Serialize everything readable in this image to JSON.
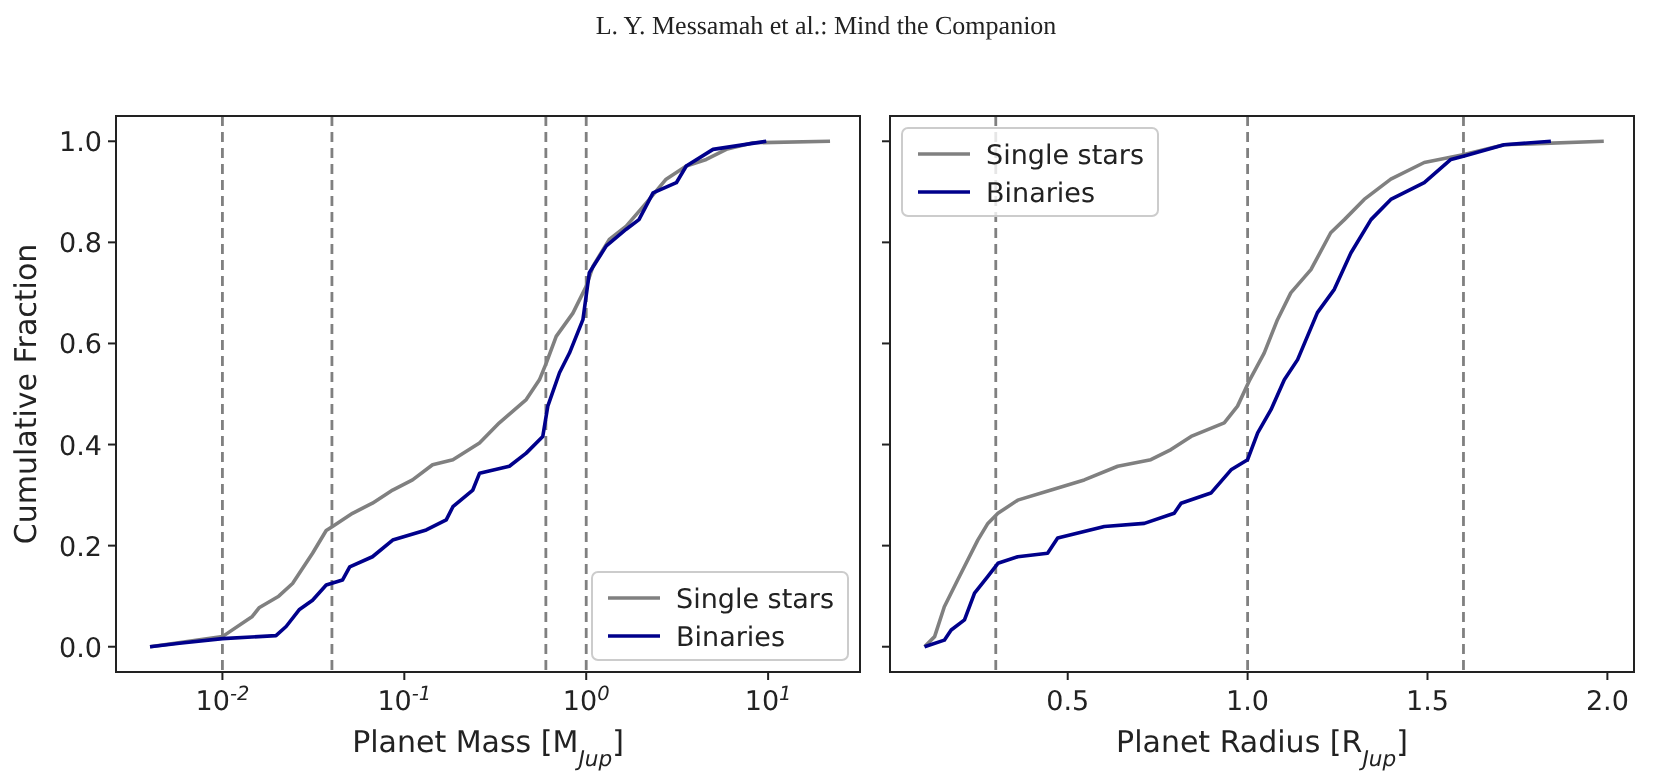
{
  "chart_data": [
    {
      "type": "line",
      "title": null,
      "annotations": [
        "L. Y. Messamah et al.: Mind the Companion"
      ],
      "xlabel": "Planet Mass [M$_{Jup}$]",
      "ylabel": "Cumulative Fraction",
      "log": "x",
      "xlim": [
        0.0026,
        32
      ],
      "xticks": [
        {
          "value": 0.01,
          "label": "10$^{-2}$"
        },
        {
          "value": 0.1,
          "label": "10$^{-1}$"
        },
        {
          "value": 1,
          "label": "10$^{0}$"
        },
        {
          "value": 10,
          "label": "10$^{1}$"
        }
      ],
      "ylim": [
        -0.05,
        1.05
      ],
      "yticks": [
        {
          "value": 0,
          "label": "0.0"
        },
        0.2,
        0.4,
        0.6,
        0.8,
        {
          "value": 1,
          "label": "1.0"
        }
      ],
      "legend": "bottom right",
      "grid": false,
      "line_style": "solid",
      "marker": "none",
      "ref_lines": [
        {
          "axis": "x",
          "value": 0.01,
          "color": "#808080",
          "line_style": "dashed"
        },
        {
          "axis": "x",
          "value": 0.04,
          "color": "#808080",
          "line_style": "dashed"
        },
        {
          "axis": "x",
          "value": 0.6,
          "color": "#808080",
          "line_style": "dashed"
        },
        {
          "axis": "x",
          "value": 1,
          "color": "#808080",
          "line_style": "dashed"
        }
      ],
      "series": [
        {
          "name": "Single stars",
          "color": "#808080",
          "x": [
            0.004,
            0.01,
            0.0146,
            0.0159,
            0.0204,
            0.0243,
            0.0313,
            0.0372,
            0.0403,
            0.0519,
            0.0668,
            0.0863,
            0.111,
            0.143,
            0.185,
            0.259,
            0.333,
            0.468,
            0.553,
            0.603,
            0.684,
            0.845,
            1,
            1.09,
            1.34,
            1.66,
            2.14,
            2.75,
            3.55,
            4.57,
            5.89,
            8.26,
            21.9
          ],
          "values": [
            0,
            0.02,
            0.06,
            0.077,
            0.1,
            0.125,
            0.185,
            0.23,
            0.238,
            0.264,
            0.284,
            0.31,
            0.33,
            0.36,
            0.37,
            0.403,
            0.443,
            0.489,
            0.528,
            0.561,
            0.614,
            0.66,
            0.713,
            0.753,
            0.806,
            0.832,
            0.878,
            0.925,
            0.951,
            0.964,
            0.984,
            0.997,
            1
          ]
        },
        {
          "name": "Binaries",
          "color": "#00008b",
          "x": [
            0.004,
            0.0058,
            0.01,
            0.0197,
            0.0224,
            0.0264,
            0.0313,
            0.0372,
            0.0457,
            0.0501,
            0.0668,
            0.0863,
            0.132,
            0.17,
            0.185,
            0.238,
            0.259,
            0.378,
            0.468,
            0.577,
            0.615,
            0.713,
            0.809,
            0.959,
            1.04,
            1.29,
            1.66,
            1.95,
            2.33,
            3.13,
            3.55,
            4.98,
            9.77
          ],
          "values": [
            0,
            0.007,
            0.016,
            0.022,
            0.04,
            0.073,
            0.092,
            0.122,
            0.132,
            0.158,
            0.178,
            0.211,
            0.231,
            0.251,
            0.277,
            0.31,
            0.343,
            0.357,
            0.383,
            0.416,
            0.476,
            0.542,
            0.581,
            0.647,
            0.74,
            0.793,
            0.826,
            0.845,
            0.898,
            0.918,
            0.951,
            0.984,
            1
          ]
        }
      ]
    },
    {
      "type": "line",
      "xlabel": "Planet Radius [R$_{Jup}$]",
      "xlim": [
        0.006,
        2.074
      ],
      "xticks": [
        0.5,
        {
          "value": 1,
          "label": "1.0"
        },
        1.5,
        {
          "value": 2,
          "label": "2.0"
        }
      ],
      "ylim": [
        -0.05,
        1.05
      ],
      "yticks": [
        0,
        0.2,
        0.4,
        0.6,
        0.8,
        1
      ],
      "tick_labels": "x",
      "legend": "top left",
      "grid": false,
      "line_style": "solid",
      "marker": "none",
      "ref_lines": [
        {
          "axis": "x",
          "value": 0.3,
          "color": "#808080",
          "line_style": "dashed"
        },
        {
          "axis": "x",
          "value": 1,
          "color": "#808080",
          "line_style": "dashed"
        },
        {
          "axis": "x",
          "value": 1.6,
          "color": "#808080",
          "line_style": "dashed"
        }
      ],
      "series": [
        {
          "name": "Single stars",
          "color": "#808080",
          "x": [
            0.102,
            0.13,
            0.157,
            0.194,
            0.25,
            0.278,
            0.306,
            0.361,
            0.454,
            0.546,
            0.639,
            0.731,
            0.787,
            0.843,
            0.935,
            0.972,
            1.006,
            1.046,
            1.083,
            1.12,
            1.176,
            1.231,
            1.269,
            1.324,
            1.398,
            1.491,
            1.602,
            1.713,
            1.99
          ],
          "values": [
            0,
            0.02,
            0.079,
            0.132,
            0.211,
            0.244,
            0.264,
            0.29,
            0.31,
            0.33,
            0.357,
            0.37,
            0.39,
            0.416,
            0.443,
            0.476,
            0.528,
            0.581,
            0.647,
            0.7,
            0.746,
            0.819,
            0.845,
            0.885,
            0.925,
            0.958,
            0.974,
            0.993,
            1
          ]
        },
        {
          "name": "Binaries",
          "color": "#00008b",
          "x": [
            0.102,
            0.157,
            0.176,
            0.213,
            0.241,
            0.278,
            0.306,
            0.361,
            0.444,
            0.472,
            0.602,
            0.713,
            0.796,
            0.815,
            0.898,
            0.954,
            1.0,
            1.028,
            1.065,
            1.102,
            1.139,
            1.194,
            1.241,
            1.287,
            1.343,
            1.398,
            1.491,
            1.565,
            1.602,
            1.713,
            1.843
          ],
          "values": [
            0,
            0.013,
            0.033,
            0.053,
            0.106,
            0.139,
            0.165,
            0.178,
            0.185,
            0.215,
            0.238,
            0.244,
            0.264,
            0.284,
            0.304,
            0.35,
            0.37,
            0.423,
            0.469,
            0.528,
            0.568,
            0.661,
            0.707,
            0.779,
            0.845,
            0.885,
            0.918,
            0.964,
            0.971,
            0.993,
            1
          ]
        }
      ]
    }
  ]
}
